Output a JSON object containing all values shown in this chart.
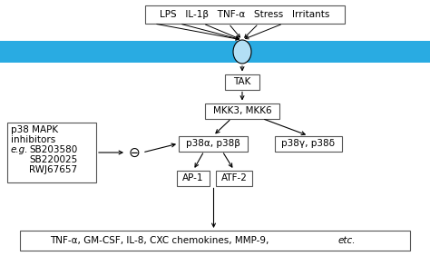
{
  "bg_color": "#ffffff",
  "cyan_bar_color": "#29abe2",
  "oval_color": "#b3dff5",
  "oval_edge": "#000000",
  "box_color": "#ffffff",
  "box_edge": "#555555",
  "top_box_text": "LPS   IL-1β   TNF-α   Stress   Irritants",
  "tak_text": "TAK",
  "mkk_text": "MKK3, MKK6",
  "p38ab_text": "p38α, p38β",
  "p38gd_text": "p38γ, p38δ",
  "ap1_text": "AP-1",
  "atf2_text": "ATF-2",
  "bottom_box_text": "TNF-α, GM-CSF, IL-8, CXC chemokines, MMP-9,",
  "bottom_box_text2": "etc.",
  "arrow_color": "#000000",
  "font_size": 7.5,
  "inhibitor_lines": [
    "p38 MAPK",
    "inhibitors",
    "SB203580",
    "SB220025",
    "RWJ67657"
  ],
  "inhibitor_italic_line": "e.g.",
  "theta_symbol": "⊖"
}
